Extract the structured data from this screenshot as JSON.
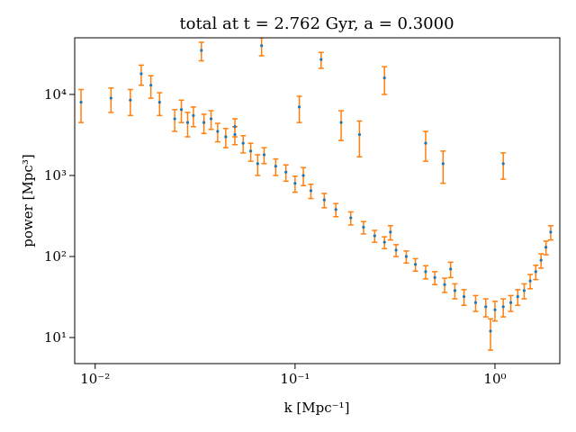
{
  "chart_data": {
    "type": "errorbar",
    "title": "total at t = 2.762 Gyr, a = 0.3000",
    "xlabel": "k [Mpc⁻¹]",
    "ylabel": "power [Mpc³]",
    "xscale": "log",
    "yscale": "log",
    "xlim": [
      0.0079,
      2.11
    ],
    "ylim": [
      4.77,
      50000
    ],
    "xticks": [
      {
        "value": 0.01,
        "label": "10⁻²"
      },
      {
        "value": 0.1,
        "label": "10⁻¹"
      },
      {
        "value": 1,
        "label": "10⁰"
      }
    ],
    "yticks": [
      {
        "value": 10,
        "label": "10¹"
      },
      {
        "value": 100,
        "label": "10²"
      },
      {
        "value": 1000,
        "label": "10³"
      },
      {
        "value": 10000,
        "label": "10⁴"
      }
    ],
    "color": "#1f77b4",
    "error_color": "#ff7f0e",
    "x": [
      0.0085,
      0.012,
      0.015,
      0.017,
      0.019,
      0.021,
      0.025,
      0.027,
      0.029,
      0.031,
      0.034,
      0.035,
      0.038,
      0.041,
      0.045,
      0.05,
      0.05,
      0.055,
      0.06,
      0.065,
      0.068,
      0.07,
      0.08,
      0.09,
      0.1,
      0.105,
      0.11,
      0.12,
      0.135,
      0.14,
      0.16,
      0.17,
      0.19,
      0.21,
      0.22,
      0.25,
      0.28,
      0.28,
      0.3,
      0.32,
      0.36,
      0.4,
      0.45,
      0.45,
      0.5,
      0.55,
      0.56,
      0.6,
      0.63,
      0.7,
      0.8,
      0.9,
      0.95,
      1.0,
      1.1,
      1.1,
      1.2,
      1.3,
      1.4,
      1.5,
      1.6,
      1.7,
      1.8,
      1.9
    ],
    "values": [
      8000,
      9000,
      8500,
      18000,
      13000,
      8000,
      5000,
      6500,
      4500,
      5500,
      35000,
      4500,
      5000,
      3500,
      3000,
      3200,
      4000,
      2500,
      2000,
      1400,
      40000,
      1800,
      1300,
      1100,
      800,
      7000,
      1000,
      650,
      27000,
      500,
      380,
      4500,
      300,
      3200,
      230,
      180,
      16000,
      150,
      200,
      120,
      100,
      80,
      65,
      2500,
      55,
      1400,
      45,
      70,
      38,
      32,
      27,
      24,
      12,
      22,
      1400,
      24,
      27,
      32,
      38,
      50,
      65,
      90,
      130,
      200
    ],
    "errors": [
      3500,
      3000,
      3000,
      5000,
      4000,
      2500,
      1500,
      2000,
      1500,
      1500,
      9000,
      1200,
      1300,
      900,
      800,
      800,
      1000,
      600,
      500,
      400,
      10000,
      400,
      300,
      250,
      180,
      2500,
      250,
      130,
      6000,
      100,
      70,
      1800,
      55,
      1500,
      40,
      30,
      6000,
      25,
      40,
      20,
      17,
      14,
      12,
      1000,
      10,
      600,
      9,
      15,
      8,
      7,
      6,
      6,
      5,
      6,
      500,
      6,
      6,
      7,
      8,
      10,
      13,
      18,
      25,
      40
    ]
  }
}
